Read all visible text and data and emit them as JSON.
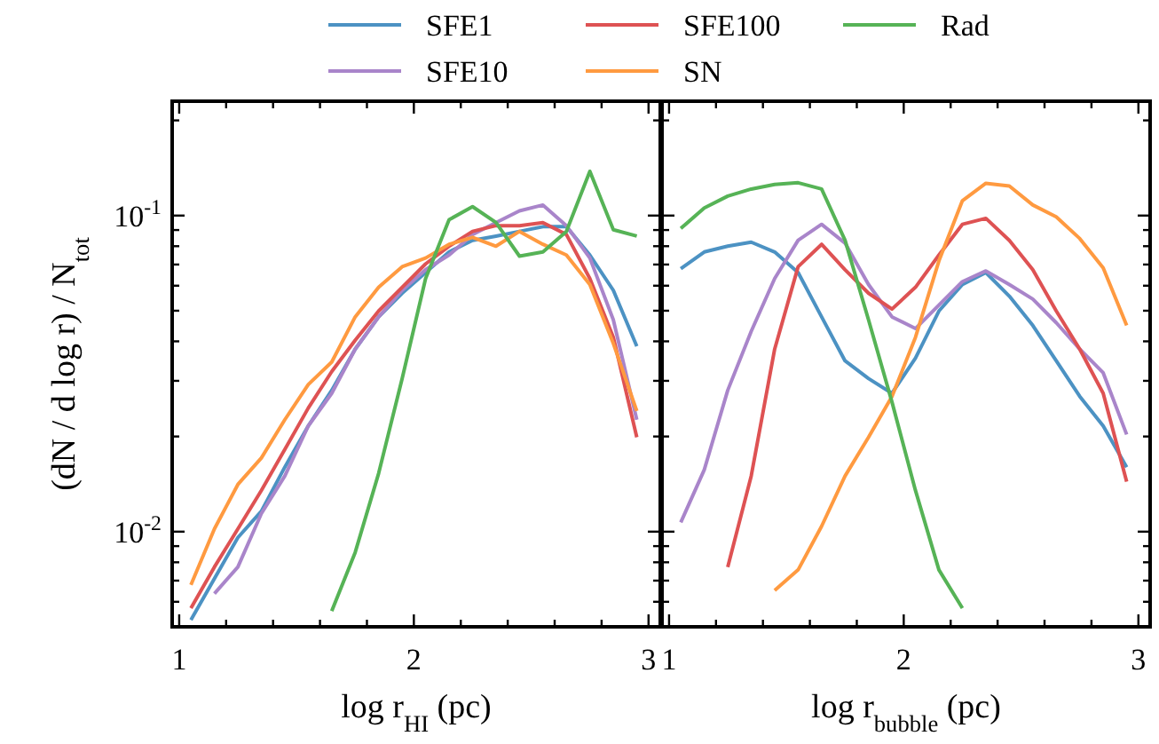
{
  "chart_data": [
    {
      "type": "line",
      "xlabel": "log r$_{HI}$ (pc)",
      "ylabel": "(dN / d log r) / N$_{tot}$",
      "log": "y",
      "legend": "top",
      "x": [
        1.05,
        1.15,
        1.25,
        1.35,
        1.45,
        1.55,
        1.65,
        1.75,
        1.85,
        1.95,
        2.05,
        2.15,
        2.25,
        2.35,
        2.45,
        2.55,
        2.65,
        2.75,
        2.85,
        2.95
      ],
      "xlim": [
        0.97,
        3.05
      ],
      "ylim": [
        0.005,
        0.23
      ],
      "xticks": [
        1,
        {
          "value": 1.2,
          "label": null
        },
        {
          "value": 1.4,
          "label": null
        },
        {
          "value": 1.6,
          "label": null
        },
        {
          "value": 1.8,
          "label": null
        },
        2,
        {
          "value": 2.2,
          "label": null
        },
        {
          "value": 2.4,
          "label": null
        },
        {
          "value": 2.6,
          "label": null
        },
        {
          "value": 2.8,
          "label": null
        },
        3
      ],
      "yticks": [
        {
          "value": 0.006,
          "label": null
        },
        {
          "value": 0.007,
          "label": null
        },
        {
          "value": 0.008,
          "label": null
        },
        {
          "value": 0.009,
          "label": null
        },
        {
          "value": 0.01,
          "label": "10$^{-2}$"
        },
        {
          "value": 0.02,
          "label": null
        },
        {
          "value": 0.03,
          "label": null
        },
        {
          "value": 0.04,
          "label": null
        },
        {
          "value": 0.05,
          "label": null
        },
        {
          "value": 0.06,
          "label": null
        },
        {
          "value": 0.07,
          "label": null
        },
        {
          "value": 0.08,
          "label": null
        },
        {
          "value": 0.09,
          "label": null
        },
        {
          "value": 0.1,
          "label": "10$^{-1}$"
        },
        {
          "value": 0.2,
          "label": null
        }
      ],
      "series": [
        {
          "name": "SFE1",
          "color": "#4c92c3",
          "values": [
            0.00526,
            0.0071,
            0.00958,
            0.0116,
            0.016,
            0.0216,
            0.028,
            0.0378,
            0.0478,
            0.0568,
            0.066,
            0.0767,
            0.0835,
            0.0861,
            0.0891,
            0.0922,
            0.0922,
            0.075,
            0.058,
            0.0386
          ]
        },
        {
          "name": "SFE10",
          "color": "#a985ca",
          "values": [
            null,
            0.00637,
            0.00773,
            0.0114,
            0.015,
            0.0216,
            0.0274,
            0.0378,
            0.0478,
            0.058,
            0.0674,
            0.075,
            0.0871,
            0.095,
            0.1035,
            0.108,
            0.0929,
            0.0734,
            0.0468,
            0.0226
          ]
        },
        {
          "name": "SFE100",
          "color": "#de5253",
          "values": [
            0.00573,
            0.00773,
            0.0102,
            0.0135,
            0.0182,
            0.0246,
            0.0321,
            0.0403,
            0.0499,
            0.0593,
            0.0703,
            0.08,
            0.0891,
            0.0929,
            0.0929,
            0.095,
            0.0871,
            0.0632,
            0.0412,
            0.0199
          ]
        },
        {
          "name": "SN",
          "color": "#ff9a40",
          "values": [
            0.00679,
            0.0102,
            0.0141,
            0.0171,
            0.0226,
            0.0292,
            0.0344,
            0.0478,
            0.0593,
            0.0689,
            0.0734,
            0.0811,
            0.0853,
            0.08,
            0.0891,
            0.0811,
            0.075,
            0.0605,
            0.0394,
            0.0241
          ]
        },
        {
          "name": "Rad",
          "color": "#56b356",
          "values": [
            null,
            null,
            null,
            null,
            null,
            null,
            0.00561,
            0.0086,
            0.0153,
            0.0305,
            0.0632,
            0.097,
            0.1067,
            0.095,
            0.0744,
            0.0767,
            0.0891,
            0.138,
            0.0902,
            0.0861
          ]
        }
      ]
    },
    {
      "type": "line",
      "xlabel": "log r$_{bubble}$ (pc)",
      "log": "y",
      "tick_labels": "x",
      "x": [
        1.05,
        1.15,
        1.25,
        1.35,
        1.45,
        1.55,
        1.65,
        1.75,
        1.85,
        1.95,
        2.05,
        2.15,
        2.25,
        2.35,
        2.45,
        2.55,
        2.65,
        2.75,
        2.85,
        2.95
      ],
      "xlim": [
        0.97,
        3.05
      ],
      "ylim": [
        0.005,
        0.23
      ],
      "xticks": [
        1,
        {
          "value": 1.2,
          "label": null
        },
        {
          "value": 1.4,
          "label": null
        },
        {
          "value": 1.6,
          "label": null
        },
        {
          "value": 1.8,
          "label": null
        },
        2,
        {
          "value": 2.2,
          "label": null
        },
        {
          "value": 2.4,
          "label": null
        },
        {
          "value": 2.6,
          "label": null
        },
        {
          "value": 2.8,
          "label": null
        },
        3
      ],
      "yticks": [
        {
          "value": 0.006,
          "label": null
        },
        {
          "value": 0.007,
          "label": null
        },
        {
          "value": 0.008,
          "label": null
        },
        {
          "value": 0.009,
          "label": null
        },
        0.01,
        {
          "value": 0.02,
          "label": null
        },
        {
          "value": 0.03,
          "label": null
        },
        {
          "value": 0.04,
          "label": null
        },
        {
          "value": 0.05,
          "label": null
        },
        {
          "value": 0.06,
          "label": null
        },
        {
          "value": 0.07,
          "label": null
        },
        {
          "value": 0.08,
          "label": null
        },
        {
          "value": 0.09,
          "label": null
        },
        0.1,
        {
          "value": 0.2,
          "label": null
        }
      ],
      "series": [
        {
          "color": "#4c92c3",
          "values": [
            0.0679,
            0.0767,
            0.08,
            0.0824,
            0.0767,
            0.066,
            0.0478,
            0.0347,
            0.0305,
            0.0274,
            0.0354,
            0.0499,
            0.0605,
            0.066,
            0.0556,
            0.0449,
            0.0347,
            0.0268,
            0.0216,
            0.016
          ]
        },
        {
          "color": "#a985ca",
          "values": [
            0.0107,
            0.0157,
            0.028,
            0.043,
            0.0632,
            0.0835,
            0.0938,
            0.0818,
            0.0605,
            0.0478,
            0.0439,
            0.0521,
            0.0618,
            0.0668,
            0.0605,
            0.0544,
            0.0458,
            0.0378,
            0.0318,
            0.0203
          ]
        },
        {
          "color": "#de5253",
          "values": [
            null,
            null,
            0.00773,
            0.015,
            0.0378,
            0.0689,
            0.0811,
            0.0674,
            0.0568,
            0.0506,
            0.0593,
            0.075,
            0.0938,
            0.098,
            0.0835,
            0.0674,
            0.0499,
            0.0378,
            0.0274,
            0.0144
          ]
        },
        {
          "color": "#ff9a40",
          "values": [
            null,
            null,
            null,
            null,
            0.00652,
            0.00757,
            0.0104,
            0.015,
            0.0199,
            0.0268,
            0.0412,
            0.0719,
            0.1114,
            0.1265,
            0.124,
            0.108,
            0.099,
            0.0846,
            0.0683,
            0.0449
          ]
        },
        {
          "color": "#56b356",
          "values": [
            0.091,
            0.1057,
            0.1152,
            0.1213,
            0.1255,
            0.127,
            0.1213,
            0.0835,
            0.0468,
            0.0257,
            0.0135,
            0.00757,
            0.00573,
            null,
            null,
            null,
            null,
            null,
            null,
            null
          ]
        }
      ]
    }
  ]
}
